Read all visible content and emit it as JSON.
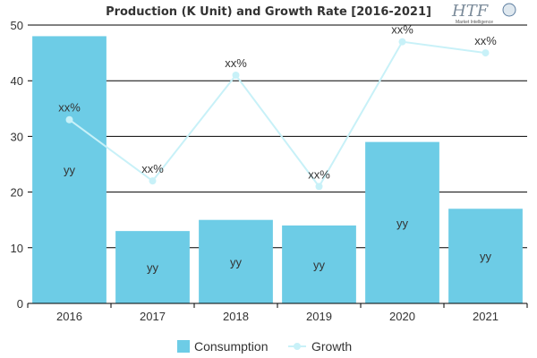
{
  "brand": {
    "logo_text": "HTF",
    "logo_subtext": "Market Intelligence"
  },
  "chart_data": {
    "type": "bar",
    "title": "Production (K Unit) and Growth Rate [2016-2021]",
    "categories": [
      "2016",
      "2017",
      "2018",
      "2019",
      "2020",
      "2021"
    ],
    "ylim": [
      0,
      50
    ],
    "yticks": [
      "0",
      "10",
      "20",
      "30",
      "40",
      "50"
    ],
    "grid": true,
    "legend_position": "bottom",
    "series": [
      {
        "name": "Consumption",
        "kind": "bar",
        "color": "#6dcce6",
        "values": [
          48,
          13,
          15,
          14,
          29,
          17
        ],
        "labels": [
          "yy",
          "yy",
          "yy",
          "yy",
          "yy",
          "yy"
        ]
      },
      {
        "name": "Growth",
        "kind": "line",
        "color": "#c8f1f8",
        "values": [
          33,
          22,
          41,
          21,
          47,
          45
        ],
        "labels": [
          "xx%",
          "xx%",
          "xx%",
          "xx%",
          "xx%",
          "xx%"
        ]
      }
    ]
  }
}
